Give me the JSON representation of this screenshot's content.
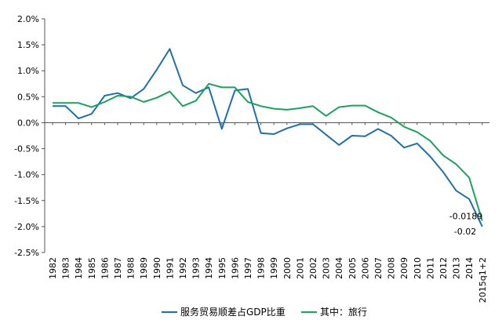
{
  "chart_data": {
    "type": "line",
    "title": "",
    "xlabel": "",
    "ylabel": "",
    "ylim": [
      -0.025,
      0.02
    ],
    "yticks": [
      0.02,
      0.015,
      0.01,
      0.005,
      0.0,
      -0.005,
      -0.01,
      -0.015,
      -0.02,
      -0.025
    ],
    "ytick_labels": [
      "2.0%",
      "1.5%",
      "1.0%",
      "0.5%",
      "0.0%",
      "-0.5%",
      "-1.0%",
      "-1.5%",
      "-2.0%",
      "-2.5%"
    ],
    "categories": [
      "1982",
      "1983",
      "1984",
      "1985",
      "1986",
      "1987",
      "1988",
      "1989",
      "1990",
      "1991",
      "1992",
      "1993",
      "1994",
      "1995",
      "1996",
      "1997",
      "1998",
      "1999",
      "2000",
      "2001",
      "2002",
      "2003",
      "2004",
      "2005",
      "2006",
      "2007",
      "2008",
      "2009",
      "2010",
      "2011",
      "2012",
      "2013",
      "2014",
      "2015q1+2"
    ],
    "series": [
      {
        "name": "服务贸易顺差占GDP比重",
        "color": "#1f6fae",
        "values": [
          0.0032,
          0.0032,
          0.0008,
          0.0017,
          0.0052,
          0.0057,
          0.0047,
          0.0065,
          0.0102,
          0.0142,
          0.0072,
          0.0057,
          0.0068,
          -0.0012,
          0.0062,
          0.0065,
          -0.002,
          -0.0022,
          -0.0011,
          -0.0003,
          -0.0003,
          -0.0023,
          -0.0043,
          -0.0025,
          -0.0026,
          -0.0012,
          -0.0025,
          -0.0048,
          -0.004,
          -0.0065,
          -0.0095,
          -0.0131,
          -0.0147,
          -0.02
        ]
      },
      {
        "name": "其中：旅行",
        "color": "#1aa35a",
        "values": [
          0.0038,
          0.0038,
          0.0038,
          0.003,
          0.004,
          0.0052,
          0.005,
          0.004,
          0.0048,
          0.006,
          0.0032,
          0.0042,
          0.0075,
          0.0068,
          0.0068,
          0.004,
          0.0032,
          0.0027,
          0.0025,
          0.0028,
          0.0032,
          0.0013,
          0.003,
          0.0033,
          0.0033,
          0.002,
          0.001,
          -0.0008,
          -0.0018,
          -0.0035,
          -0.0063,
          -0.008,
          -0.0106,
          -0.0189
        ]
      }
    ],
    "annotations": [
      {
        "text": "-0.0189",
        "series": 1,
        "index": 33
      },
      {
        "text": "-0.02",
        "series": 0,
        "index": 33
      }
    ],
    "grid": false,
    "legend_position": "bottom"
  }
}
